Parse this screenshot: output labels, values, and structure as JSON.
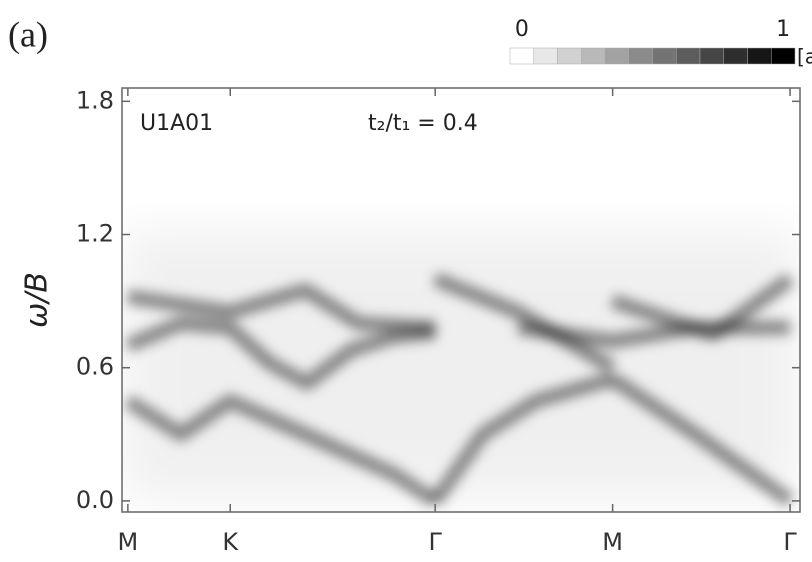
{
  "chart_data": {
    "type": "spectrum",
    "panel_label": "(a)",
    "annotation_left": "U1A01",
    "annotation_right": "t₂/t₁ = 0.4",
    "ylabel": "ω/B",
    "xlim": [
      -0.033,
      3.788
    ],
    "ylim": [
      -0.05,
      1.86
    ],
    "xticks": [
      {
        "value": 0,
        "label": "M"
      },
      {
        "value": 0.577,
        "label": "K"
      },
      {
        "value": 1.732,
        "label": "Γ"
      },
      {
        "value": 2.732,
        "label": "M"
      },
      {
        "value": 3.732,
        "label": "Γ"
      }
    ],
    "yticks": [
      {
        "value": 0,
        "label": "0.0"
      },
      0.6,
      1.2,
      1.8
    ],
    "color": "#000000",
    "colorbar": {
      "clim": [
        0,
        1
      ],
      "ticks": [
        0,
        1
      ],
      "label": "[a.u.]",
      "steps": 12
    },
    "series": [
      {
        "x": [
          0,
          0.3,
          0.577,
          0.8,
          1.01,
          1.26,
          1.5,
          1.732
        ],
        "values": [
          0.7,
          0.8,
          0.78,
          0.62,
          0.53,
          0.68,
          0.74,
          0.76
        ]
      },
      {
        "x": [
          0,
          0.577,
          1.0,
          1.3,
          1.732
        ],
        "values": [
          0.92,
          0.85,
          0.95,
          0.8,
          0.78
        ]
      },
      {
        "x": [
          0,
          0.3,
          0.577,
          1.0,
          1.5,
          1.732
        ],
        "values": [
          0.45,
          0.3,
          0.45,
          0.3,
          0.12,
          0.0
        ]
      },
      {
        "x": [
          1.732,
          2.0,
          2.3,
          2.732
        ],
        "values": [
          0.0,
          0.3,
          0.45,
          0.55
        ]
      },
      {
        "x": [
          1.732,
          2.2,
          2.732
        ],
        "values": [
          1.0,
          0.85,
          0.6
        ]
      },
      {
        "x": [
          2.2,
          2.732,
          3.2,
          3.732
        ],
        "values": [
          0.78,
          0.72,
          0.78,
          0.78
        ]
      },
      {
        "x": [
          2.732,
          3.2,
          3.732
        ],
        "values": [
          0.55,
          0.3,
          0.0
        ]
      },
      {
        "x": [
          2.732,
          3.3,
          3.732
        ],
        "values": [
          0.9,
          0.75,
          1.0
        ]
      }
    ]
  }
}
